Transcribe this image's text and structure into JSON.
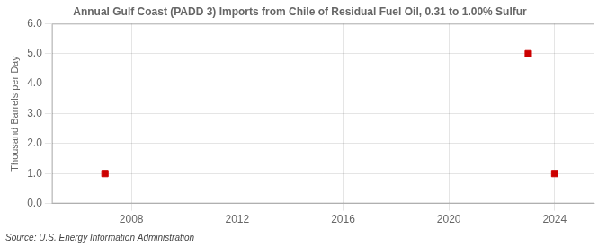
{
  "chart_data": {
    "type": "scatter",
    "title": "Annual Gulf Coast (PADD 3) Imports from Chile of Residual Fuel Oil, 0.31 to 1.00% Sulfur",
    "ylabel": "Thousand Barrels per Day",
    "source": "Source: U.S. Energy Information Administration",
    "x": [
      2007,
      2023,
      2024
    ],
    "values": [
      1.0,
      5.0,
      1.0
    ],
    "color": "#cc0000",
    "marker": "square",
    "xlim": [
      2005,
      2025.5
    ],
    "ylim": [
      0.0,
      6.0
    ],
    "xticks": [
      2008,
      2012,
      2016,
      2020,
      2024
    ],
    "yticks": [
      {
        "value": 0.0,
        "label": "0.0"
      },
      {
        "value": 1.0,
        "label": "1.0"
      },
      {
        "value": 2.0,
        "label": "2.0"
      },
      {
        "value": 3.0,
        "label": "3.0"
      },
      {
        "value": 4.0,
        "label": "4.0"
      },
      {
        "value": 5.0,
        "label": "5.0"
      },
      {
        "value": 6.0,
        "label": "6.0"
      }
    ],
    "grid": true
  }
}
